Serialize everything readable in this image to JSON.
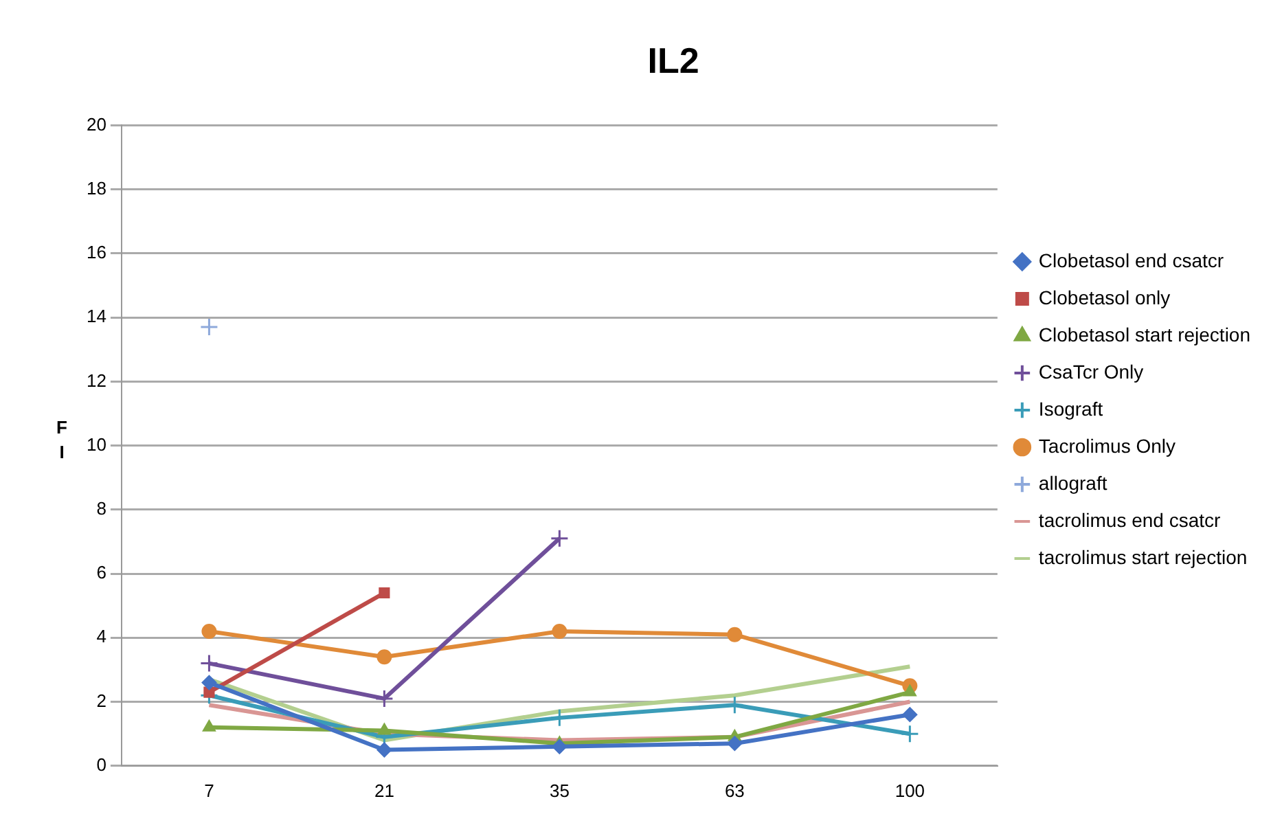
{
  "chart_data": {
    "type": "line",
    "title": "IL2",
    "ylabel": "FI",
    "categories": [
      "7",
      "21",
      "35",
      "63",
      "100"
    ],
    "ylim": [
      0,
      20
    ],
    "yticks": [
      0,
      2,
      4,
      6,
      8,
      10,
      12,
      14,
      16,
      18,
      20
    ],
    "grid": "y",
    "legend": "right",
    "series": [
      {
        "name": "Clobetasol end csatcr",
        "color": "#4472c4",
        "marker": "diamond",
        "values": [
          2.6,
          0.5,
          0.6,
          0.7,
          1.6
        ]
      },
      {
        "name": "Clobetasol only",
        "color": "#be4b48",
        "marker": "square",
        "values": [
          2.3,
          5.4,
          null,
          null,
          null
        ]
      },
      {
        "name": "Clobetasol start rejection",
        "color": "#7fa843",
        "marker": "triangle",
        "values": [
          1.2,
          1.1,
          0.7,
          0.9,
          2.3
        ]
      },
      {
        "name": "CsaTcr Only",
        "color": "#6f4f9a",
        "marker": "cross",
        "values": [
          3.2,
          2.1,
          7.1,
          null,
          null
        ]
      },
      {
        "name": "Isograft",
        "color": "#3a9cb8",
        "marker": "cross",
        "values": [
          2.2,
          0.9,
          1.5,
          1.9,
          1.0
        ]
      },
      {
        "name": "Tacrolimus Only",
        "color": "#e08a38",
        "marker": "circle",
        "values": [
          4.2,
          3.4,
          4.2,
          4.1,
          2.5
        ]
      },
      {
        "name": "allograft",
        "color": "#8ea9db",
        "marker": "cross",
        "values": [
          13.7,
          null,
          null,
          null,
          null
        ]
      },
      {
        "name": "tacrolimus end csatcr",
        "color": "#d99694",
        "marker": "none",
        "values": [
          1.9,
          1.0,
          0.8,
          0.9,
          2.0
        ]
      },
      {
        "name": "tacrolimus start rejection",
        "color": "#b3cf8f",
        "marker": "none",
        "values": [
          2.7,
          0.8,
          1.7,
          2.2,
          3.1
        ]
      }
    ]
  }
}
